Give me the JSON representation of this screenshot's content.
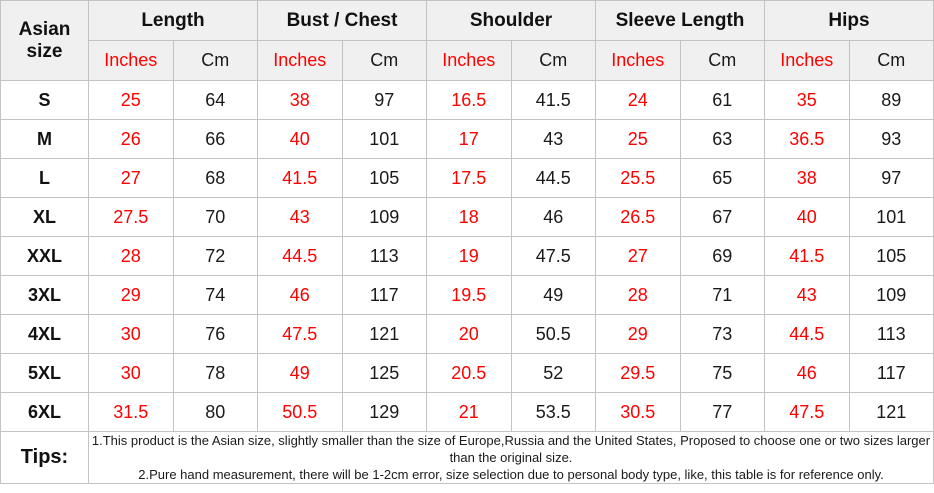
{
  "colors": {
    "inches_red": "#ff0000",
    "text_black": "#1a1a1a",
    "header_bg": "#f0f0f0",
    "border_grey": "#c3c3c3"
  },
  "chart_data": {
    "type": "table",
    "title": "Asian size garment measurement chart",
    "corner_header": "Asian size",
    "column_groups": [
      "Length",
      "Bust / Chest",
      "Shoulder",
      "Sleeve Length",
      "Hips"
    ],
    "unit_headers": [
      "Inches",
      "Cm"
    ],
    "value_column_order": [
      "Length Inches",
      "Length Cm",
      "Bust/Chest Inches",
      "Bust/Chest Cm",
      "Shoulder Inches",
      "Shoulder Cm",
      "Sleeve Length Inches",
      "Sleeve Length Cm",
      "Hips Inches",
      "Hips Cm"
    ],
    "rows": [
      {
        "size": "S",
        "values": [
          25,
          64,
          38,
          97,
          16.5,
          41.5,
          24,
          61,
          35,
          89
        ]
      },
      {
        "size": "M",
        "values": [
          26,
          66,
          40,
          101,
          17,
          43,
          25,
          63,
          36.5,
          93
        ]
      },
      {
        "size": "L",
        "values": [
          27,
          68,
          41.5,
          105,
          17.5,
          44.5,
          25.5,
          65,
          38,
          97
        ]
      },
      {
        "size": "XL",
        "values": [
          27.5,
          70,
          43,
          109,
          18,
          46,
          26.5,
          67,
          40,
          101
        ]
      },
      {
        "size": "XXL",
        "values": [
          28,
          72,
          44.5,
          113,
          19,
          47.5,
          27,
          69,
          41.5,
          105
        ]
      },
      {
        "size": "3XL",
        "values": [
          29,
          74,
          46,
          117,
          19.5,
          49,
          28,
          71,
          43,
          109
        ]
      },
      {
        "size": "4XL",
        "values": [
          30,
          76,
          47.5,
          121,
          20,
          50.5,
          29,
          73,
          44.5,
          113
        ]
      },
      {
        "size": "5XL",
        "values": [
          30,
          78,
          49,
          125,
          20.5,
          52,
          29.5,
          75,
          46,
          117
        ]
      },
      {
        "size": "6XL",
        "values": [
          31.5,
          80,
          50.5,
          129,
          21,
          53.5,
          30.5,
          77,
          47.5,
          121
        ]
      }
    ]
  },
  "tips": {
    "label": "Tips:",
    "lines": [
      "1.This product is the Asian size, slightly smaller than the size of Europe,Russia and the United States, Proposed to choose one or two sizes larger than the original size.",
      "2.Pure hand measurement, there will be 1-2cm error, size selection due to personal body type, like, this table is for reference only."
    ]
  }
}
